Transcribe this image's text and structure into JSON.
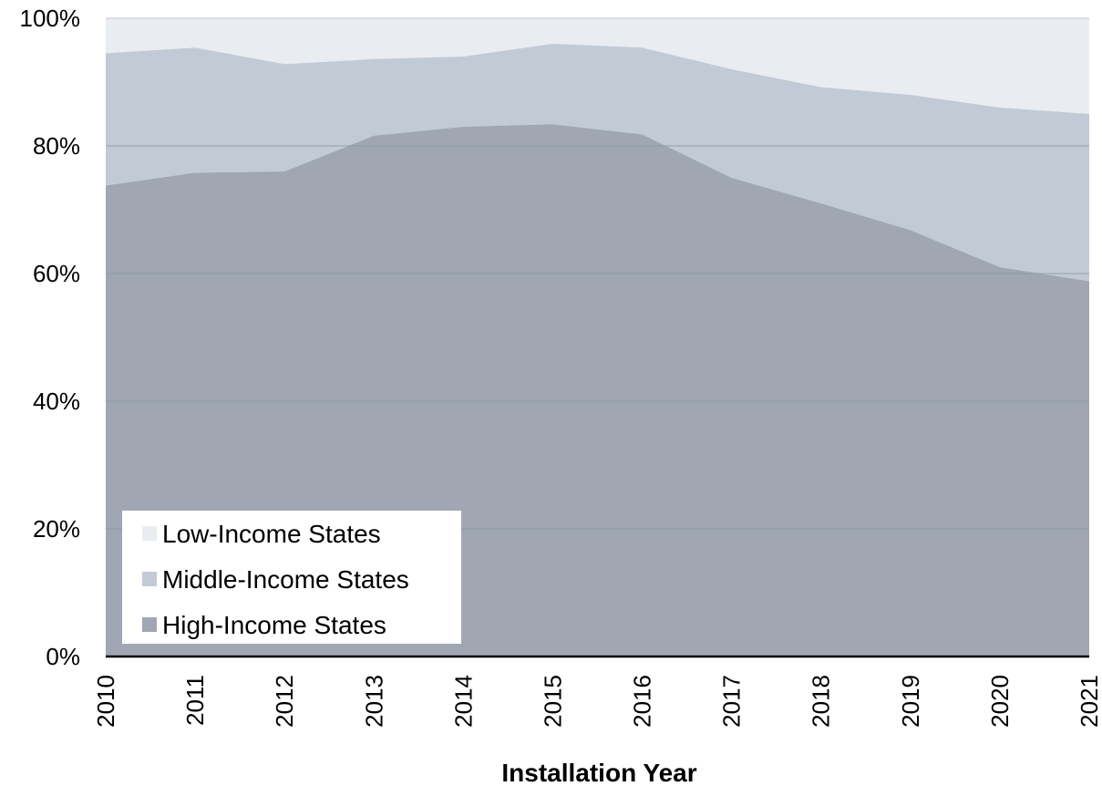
{
  "chart_data": {
    "type": "area",
    "stacked": true,
    "percent": true,
    "title": "",
    "xlabel": "Installation Year",
    "ylabel": "",
    "x": [
      "2010",
      "2011",
      "2012",
      "2013",
      "2014",
      "2015",
      "2016",
      "2017",
      "2018",
      "2019",
      "2020",
      "2021"
    ],
    "ylim": [
      0,
      100
    ],
    "yticks": [
      0,
      20,
      40,
      60,
      80,
      100
    ],
    "ytick_labels": [
      "0%",
      "20%",
      "40%",
      "60%",
      "80%",
      "100%"
    ],
    "grid": true,
    "legend_position": "bottom-left",
    "series": [
      {
        "name": "High-Income States",
        "color": "#a0a7b2",
        "cumulative": [
          73.8,
          75.8,
          76.0,
          81.6,
          83.0,
          83.4,
          81.8,
          75.0,
          71.0,
          66.8,
          61.0,
          58.8
        ]
      },
      {
        "name": "Middle-Income States",
        "color": "#c2cad6",
        "cumulative": [
          94.5,
          95.4,
          92.8,
          93.6,
          94.0,
          96.0,
          95.4,
          92.0,
          89.2,
          88.0,
          86.0,
          85.0
        ]
      },
      {
        "name": "Low-Income States",
        "color": "#e9ecf1",
        "cumulative": [
          100,
          100,
          100,
          100,
          100,
          100,
          100,
          100,
          100,
          100,
          100,
          100
        ]
      }
    ],
    "legend_order": [
      "Low-Income States",
      "Middle-Income States",
      "High-Income States"
    ]
  }
}
